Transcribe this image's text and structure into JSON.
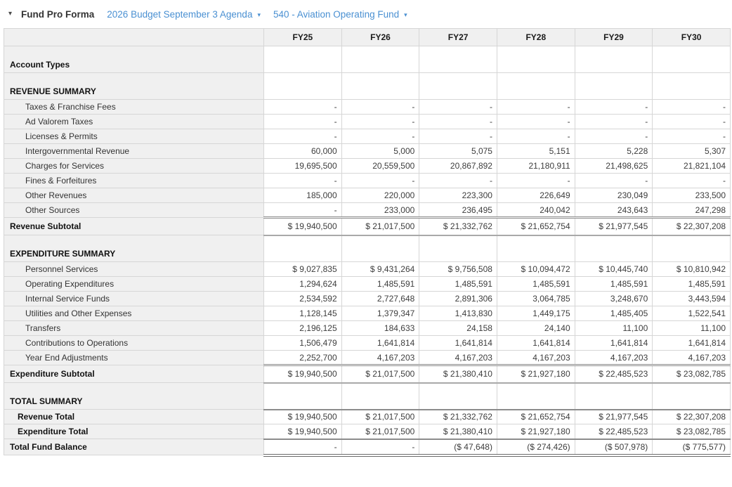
{
  "header": {
    "collapse_icon": "▾",
    "title": "Fund Pro Forma",
    "budget_selector": "2026 Budget September 3 Agenda",
    "fund_selector": "540 - Aviation Operating Fund",
    "dropdown_icon": "▾"
  },
  "colors": {
    "link_blue": "#4a90d2",
    "label_column_bg": "#f0f0f0",
    "grid_border_light": "#d6d6d6",
    "grid_border_dark": "#8c8c8c",
    "text_dark": "#333333"
  },
  "table": {
    "columns": [
      "FY25",
      "FY26",
      "FY27",
      "FY28",
      "FY29",
      "FY30"
    ],
    "rows": [
      {
        "label": "Account Types",
        "type": "section",
        "values": [
          "",
          "",
          "",
          "",
          "",
          ""
        ]
      },
      {
        "label": "REVENUE SUMMARY",
        "type": "section",
        "values": [
          "",
          "",
          "",
          "",
          "",
          ""
        ]
      },
      {
        "label": "Taxes & Franchise Fees",
        "type": "item",
        "values": [
          "-",
          "-",
          "-",
          "-",
          "-",
          "-"
        ]
      },
      {
        "label": "Ad Valorem Taxes",
        "type": "item",
        "values": [
          "-",
          "-",
          "-",
          "-",
          "-",
          "-"
        ]
      },
      {
        "label": "Licenses & Permits",
        "type": "item",
        "values": [
          "-",
          "-",
          "-",
          "-",
          "-",
          "-"
        ]
      },
      {
        "label": "Intergovernmental Revenue",
        "type": "item",
        "values": [
          "60,000",
          "5,000",
          "5,075",
          "5,151",
          "5,228",
          "5,307"
        ]
      },
      {
        "label": "Charges for Services",
        "type": "item",
        "values": [
          "19,695,500",
          "20,559,500",
          "20,867,892",
          "21,180,911",
          "21,498,625",
          "21,821,104"
        ]
      },
      {
        "label": "Fines & Forfeitures",
        "type": "item",
        "values": [
          "-",
          "-",
          "-",
          "-",
          "-",
          "-"
        ]
      },
      {
        "label": "Other Revenues",
        "type": "item",
        "values": [
          "185,000",
          "220,000",
          "223,300",
          "226,649",
          "230,049",
          "233,500"
        ]
      },
      {
        "label": "Other Sources",
        "type": "item",
        "values": [
          "-",
          "233,000",
          "236,495",
          "240,042",
          "243,643",
          "247,298"
        ]
      },
      {
        "label": "Revenue Subtotal",
        "type": "subtotal",
        "values": [
          "$ 19,940,500",
          "$ 21,017,500",
          "$ 21,332,762",
          "$ 21,652,754",
          "$ 21,977,545",
          "$ 22,307,208"
        ]
      },
      {
        "label": "EXPENDITURE SUMMARY",
        "type": "section",
        "values": [
          "",
          "",
          "",
          "",
          "",
          ""
        ]
      },
      {
        "label": "Personnel Services",
        "type": "item",
        "values": [
          "$ 9,027,835",
          "$ 9,431,264",
          "$ 9,756,508",
          "$ 10,094,472",
          "$ 10,445,740",
          "$ 10,810,942"
        ]
      },
      {
        "label": "Operating Expenditures",
        "type": "item",
        "values": [
          "1,294,624",
          "1,485,591",
          "1,485,591",
          "1,485,591",
          "1,485,591",
          "1,485,591"
        ]
      },
      {
        "label": "Internal Service Funds",
        "type": "item",
        "values": [
          "2,534,592",
          "2,727,648",
          "2,891,306",
          "3,064,785",
          "3,248,670",
          "3,443,594"
        ]
      },
      {
        "label": "Utilities and Other Expenses",
        "type": "item",
        "values": [
          "1,128,145",
          "1,379,347",
          "1,413,830",
          "1,449,175",
          "1,485,405",
          "1,522,541"
        ]
      },
      {
        "label": "Transfers",
        "type": "item",
        "values": [
          "2,196,125",
          "184,633",
          "24,158",
          "24,140",
          "11,100",
          "11,100"
        ]
      },
      {
        "label": "Contributions to Operations",
        "type": "item",
        "values": [
          "1,506,479",
          "1,641,814",
          "1,641,814",
          "1,641,814",
          "1,641,814",
          "1,641,814"
        ]
      },
      {
        "label": "Year End Adjustments",
        "type": "item",
        "values": [
          "2,252,700",
          "4,167,203",
          "4,167,203",
          "4,167,203",
          "4,167,203",
          "4,167,203"
        ]
      },
      {
        "label": "Expenditure Subtotal",
        "type": "subtotal",
        "values": [
          "$ 19,940,500",
          "$ 21,017,500",
          "$ 21,380,410",
          "$ 21,927,180",
          "$ 22,485,523",
          "$ 23,082,785"
        ]
      },
      {
        "label": "TOTAL SUMMARY",
        "type": "section",
        "values": [
          "",
          "",
          "",
          "",
          "",
          ""
        ]
      },
      {
        "label": "Revenue Total",
        "type": "total-first",
        "values": [
          "$ 19,940,500",
          "$ 21,017,500",
          "$ 21,332,762",
          "$ 21,652,754",
          "$ 21,977,545",
          "$ 22,307,208"
        ]
      },
      {
        "label": "Expenditure Total",
        "type": "total-last",
        "values": [
          "$ 19,940,500",
          "$ 21,017,500",
          "$ 21,380,410",
          "$ 21,927,180",
          "$ 22,485,523",
          "$ 23,082,785"
        ]
      },
      {
        "label": "Total Fund Balance",
        "type": "grand",
        "values": [
          "-",
          "-",
          "($ 47,648)",
          "($ 274,426)",
          "($ 507,978)",
          "($ 775,577)"
        ]
      }
    ]
  }
}
